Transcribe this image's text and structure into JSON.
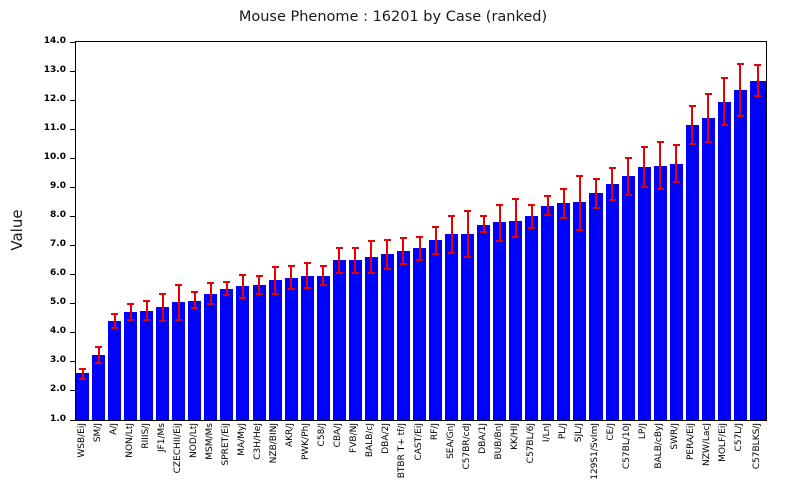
{
  "title": "Mouse Phenome : 16201 by Case (ranked)",
  "y_axis": {
    "label": "Value",
    "min": 1.0,
    "max": 14.0,
    "tick_values": [
      1,
      2,
      3,
      4,
      5,
      6,
      7,
      8,
      9,
      10,
      11,
      12,
      13,
      14
    ],
    "tick_labels": [
      "1.0",
      "2.0",
      "3.0",
      "4.0",
      "5.0",
      "6.0",
      "7.0",
      "8.0",
      "9.0",
      "10.0",
      "11.0",
      "12.0",
      "13.0",
      "14.0"
    ]
  },
  "colors": {
    "bar": "#0000ff",
    "error_bar": "#e80000",
    "axis": "#000000",
    "background": "#ffffff",
    "title_text": "#1a1a1a"
  },
  "chart_data": {
    "type": "bar",
    "title": "Mouse Phenome : 16201 by Case (ranked)",
    "xlabel": "",
    "ylabel": "Value",
    "ylim": [
      1.0,
      14.0
    ],
    "grid": false,
    "legend": "none",
    "bar_color": "#0000ff",
    "error_bar_color": "#e80000",
    "categories": [
      "WSB/EiJ",
      "SM/J",
      "A/J",
      "NON/LtJ",
      "RIIIS/J",
      "JF1/Ms",
      "CZECHII/EiJ",
      "NOD/LtJ",
      "MSM/Ms",
      "SPRET/EiJ",
      "MA/MyJ",
      "C3H/HeJ",
      "NZB/BINJ",
      "AKR/J",
      "PWK/PhJ",
      "C58/J",
      "CBA/J",
      "FVB/NJ",
      "BALB/cJ",
      "DBA/2J",
      "BTBR T+ tf/J",
      "CAST/EiJ",
      "RF/J",
      "SEA/GnJ",
      "C57BR/cdJ",
      "DBA/1J",
      "BUB/BnJ",
      "KK/HIJ",
      "C57BL/6J",
      "I/LnJ",
      "PL/J",
      "SJL/J",
      "129S1/SvImJ",
      "CE/J",
      "C57BL/10J",
      "LP/J",
      "BALB/cByJ",
      "SWR/J",
      "PERA/EiJ",
      "NZW/LacJ",
      "MOLF/EiJ",
      "C57L/J",
      "C57BLKS/J"
    ],
    "values": [
      2.6,
      3.25,
      4.4,
      4.7,
      4.75,
      4.9,
      5.05,
      5.1,
      5.35,
      5.5,
      5.6,
      5.65,
      5.8,
      5.9,
      5.95,
      5.95,
      6.5,
      6.5,
      6.6,
      6.7,
      6.8,
      6.9,
      7.2,
      7.4,
      7.4,
      7.7,
      7.8,
      7.85,
      8.0,
      8.35,
      8.45,
      8.5,
      8.8,
      9.1,
      9.4,
      9.7,
      9.75,
      9.8,
      11.15,
      11.4,
      11.95,
      12.35,
      12.65
    ],
    "error_low": [
      2.4,
      2.95,
      4.15,
      4.45,
      4.45,
      4.4,
      4.45,
      4.85,
      5.0,
      5.3,
      5.2,
      5.35,
      5.35,
      5.5,
      5.55,
      5.65,
      6.05,
      6.05,
      6.05,
      6.2,
      6.35,
      6.5,
      6.7,
      6.75,
      6.6,
      7.45,
      7.15,
      7.3,
      7.6,
      8.05,
      7.95,
      7.55,
      8.3,
      8.55,
      8.75,
      9.0,
      8.95,
      9.2,
      10.5,
      10.55,
      11.15,
      11.45,
      12.15
    ],
    "error_high": [
      2.75,
      3.5,
      4.65,
      5.0,
      5.1,
      5.35,
      5.65,
      5.4,
      5.7,
      5.75,
      6.0,
      5.95,
      6.25,
      6.3,
      6.4,
      6.3,
      6.9,
      6.9,
      7.15,
      7.2,
      7.25,
      7.3,
      7.65,
      8.0,
      8.2,
      8.0,
      8.4,
      8.6,
      8.4,
      8.7,
      8.95,
      9.4,
      9.3,
      9.65,
      10.0,
      10.4,
      10.55,
      10.45,
      11.8,
      12.2,
      12.75,
      13.25,
      13.2
    ]
  }
}
